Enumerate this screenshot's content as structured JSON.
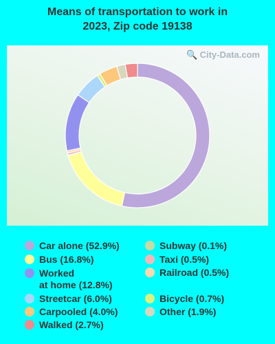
{
  "chart_data": {
    "type": "pie",
    "title": "Means of transportation to work in 2023, Zip code 19138",
    "donut": true,
    "legend_position": "bottom",
    "series": [
      {
        "name": "Car alone",
        "value": 52.9,
        "label": "Car alone (52.9%)",
        "color": "#bba7db"
      },
      {
        "name": "Bus",
        "value": 16.8,
        "label": "Bus (16.8%)",
        "color": "#ffff99"
      },
      {
        "name": "Subway",
        "value": 0.1,
        "label": "Subway (0.1%)",
        "color": "#c9dba5"
      },
      {
        "name": "Taxi",
        "value": 0.5,
        "label": "Taxi (0.5%)",
        "color": "#f4b8b8"
      },
      {
        "name": "Railroad",
        "value": 0.5,
        "label": "Railroad (0.5%)",
        "color": "#fcd9ae"
      },
      {
        "name": "Worked at home",
        "value": 12.8,
        "label": "Worked at home (12.8%)",
        "label_line1": "Worked",
        "label_line2": "at home (12.8%)",
        "color": "#9391ef"
      },
      {
        "name": "Streetcar",
        "value": 6.0,
        "label": "Streetcar (6.0%)",
        "color": "#acd7fa"
      },
      {
        "name": "Bicycle",
        "value": 0.7,
        "label": "Bicycle (0.7%)",
        "color": "#dcf27f"
      },
      {
        "name": "Carpooled",
        "value": 4.0,
        "label": "Carpooled (4.0%)",
        "color": "#fdc77c"
      },
      {
        "name": "Other",
        "value": 1.9,
        "label": "Other (1.9%)",
        "color": "#d8d6bd"
      },
      {
        "name": "Walked",
        "value": 2.7,
        "label": "Walked (2.7%)",
        "color": "#f08a8c"
      }
    ]
  },
  "watermark": "City-Data.com"
}
